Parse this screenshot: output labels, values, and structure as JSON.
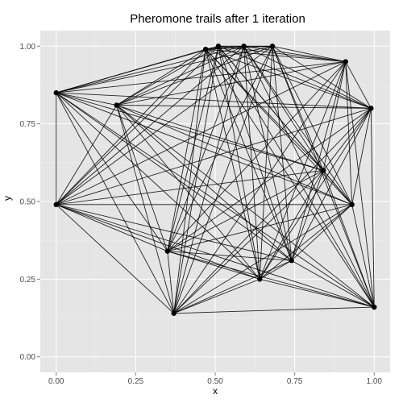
{
  "chart_data": {
    "type": "line",
    "title": "Pheromone trails after 1 iteration",
    "xlabel": "x",
    "ylabel": "y",
    "xlim": [
      -0.05,
      1.05
    ],
    "ylim": [
      -0.05,
      1.05
    ],
    "x_ticks": [
      {
        "value": 0.0,
        "label": "0.00"
      },
      {
        "value": 0.25,
        "label": "0.25"
      },
      {
        "value": 0.5,
        "label": "0.50"
      },
      {
        "value": 0.75,
        "label": "0.75"
      },
      {
        "value": 1.0,
        "label": "1.00"
      }
    ],
    "y_ticks": [
      {
        "value": 0.0,
        "label": "0.00"
      },
      {
        "value": 0.25,
        "label": "0.25"
      },
      {
        "value": 0.5,
        "label": "0.50"
      },
      {
        "value": 0.75,
        "label": "0.75"
      },
      {
        "value": 1.0,
        "label": "1.00"
      }
    ],
    "grid": true,
    "points": [
      {
        "x": 0.0,
        "y": 0.85
      },
      {
        "x": 0.0,
        "y": 0.49
      },
      {
        "x": 0.19,
        "y": 0.81
      },
      {
        "x": 0.35,
        "y": 0.34
      },
      {
        "x": 0.37,
        "y": 0.14
      },
      {
        "x": 0.47,
        "y": 0.99
      },
      {
        "x": 0.51,
        "y": 1.0
      },
      {
        "x": 0.59,
        "y": 1.0
      },
      {
        "x": 0.64,
        "y": 0.25
      },
      {
        "x": 0.68,
        "y": 1.0
      },
      {
        "x": 0.74,
        "y": 0.31
      },
      {
        "x": 0.84,
        "y": 0.6
      },
      {
        "x": 0.91,
        "y": 0.95
      },
      {
        "x": 0.93,
        "y": 0.49
      },
      {
        "x": 0.99,
        "y": 0.8
      },
      {
        "x": 1.0,
        "y": 0.16
      }
    ],
    "edges": "complete graph connecting every pair of points"
  },
  "colors": {
    "panel_background": "#e5e5e5",
    "grid_major": "#ffffff",
    "grid_minor": "#f2f2f2",
    "lines": "#000000",
    "points": "#000000",
    "tick_text": "#4d4d4d"
  }
}
